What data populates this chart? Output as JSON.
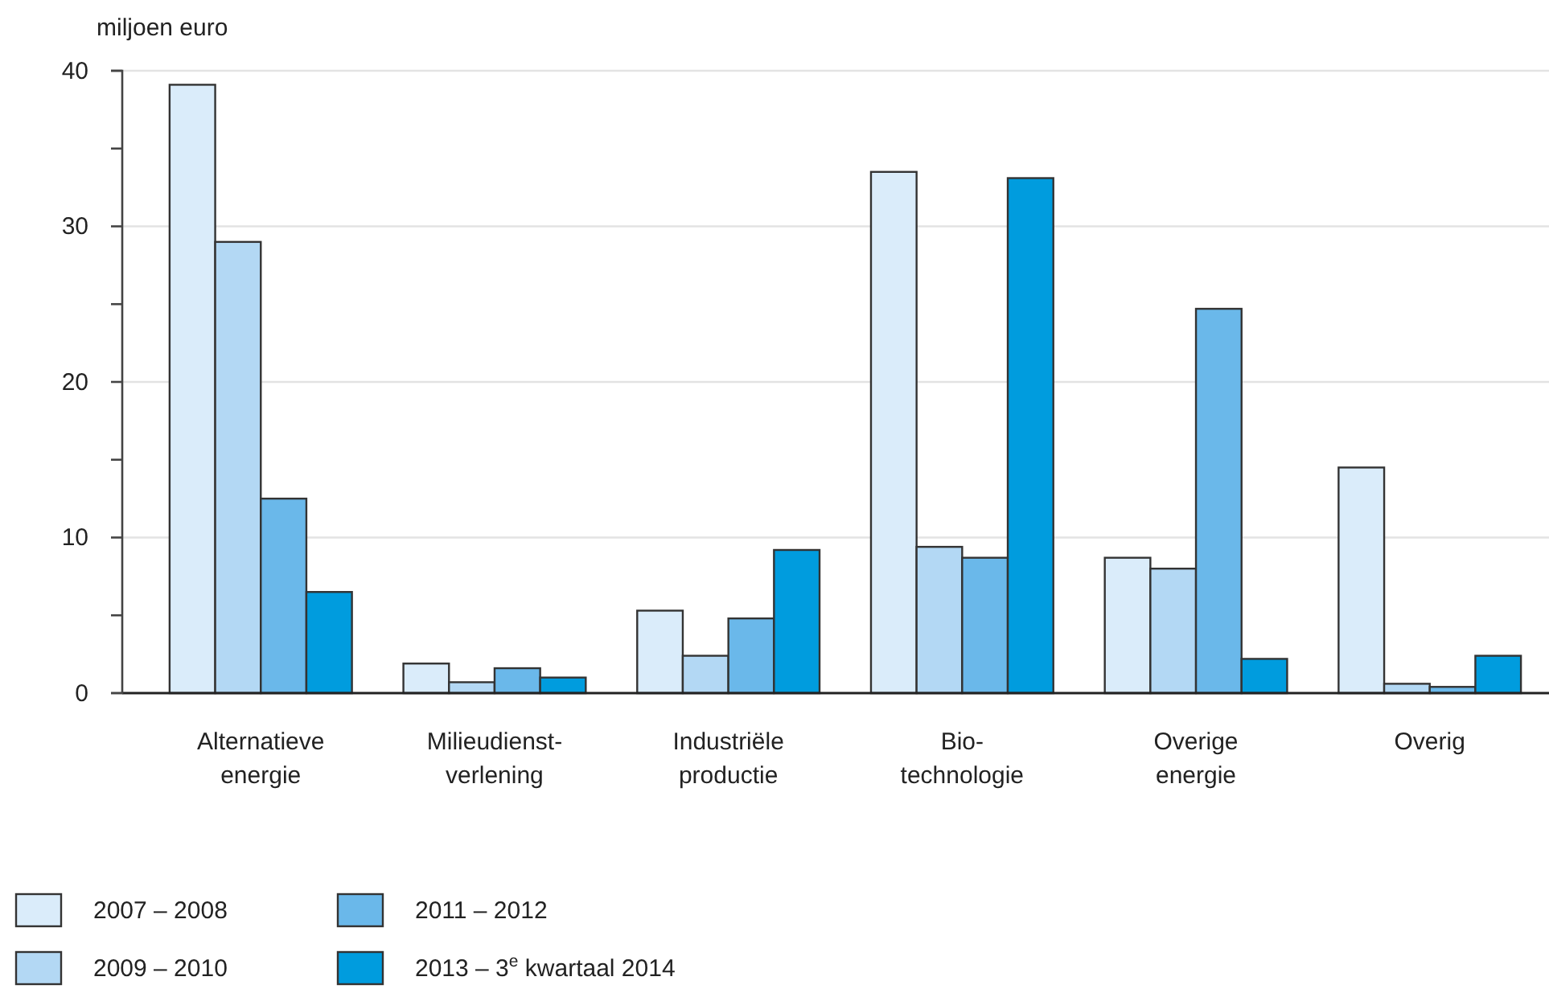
{
  "chart_data": {
    "type": "bar",
    "ylabel": "miljoen euro",
    "categories": [
      "Alternatieve\nenergie",
      "Milieudienst-\nverlening",
      "Industriële\nproductie",
      "Bio-\ntechnologie",
      "Overige\nenergie",
      "Overig"
    ],
    "series": [
      {
        "name": "2007 – 2008",
        "color": "#daecfa",
        "values": [
          39.1,
          1.9,
          5.3,
          33.5,
          8.7,
          14.5
        ]
      },
      {
        "name": "2009 – 2010",
        "color": "#b3d8f4",
        "values": [
          29.0,
          0.7,
          2.4,
          9.4,
          8.0,
          0.6
        ]
      },
      {
        "name": "2011 – 2012",
        "color": "#6ab8ea",
        "values": [
          12.5,
          1.6,
          4.8,
          8.7,
          24.7,
          0.4
        ]
      },
      {
        "name": "2013 – 3$^{e}$ kwartaal 2014",
        "color": "#009cde",
        "values": [
          6.5,
          1.0,
          9.2,
          33.1,
          2.2,
          2.4
        ]
      }
    ],
    "ylim": [
      0,
      40
    ],
    "yticks": [
      0,
      {
        "value": 5,
        "label": null
      },
      10,
      {
        "value": 15,
        "label": null
      },
      20,
      {
        "value": 25,
        "label": null
      },
      30,
      {
        "value": 35,
        "label": null
      },
      40
    ],
    "grid": "y",
    "legend": "bottom"
  }
}
